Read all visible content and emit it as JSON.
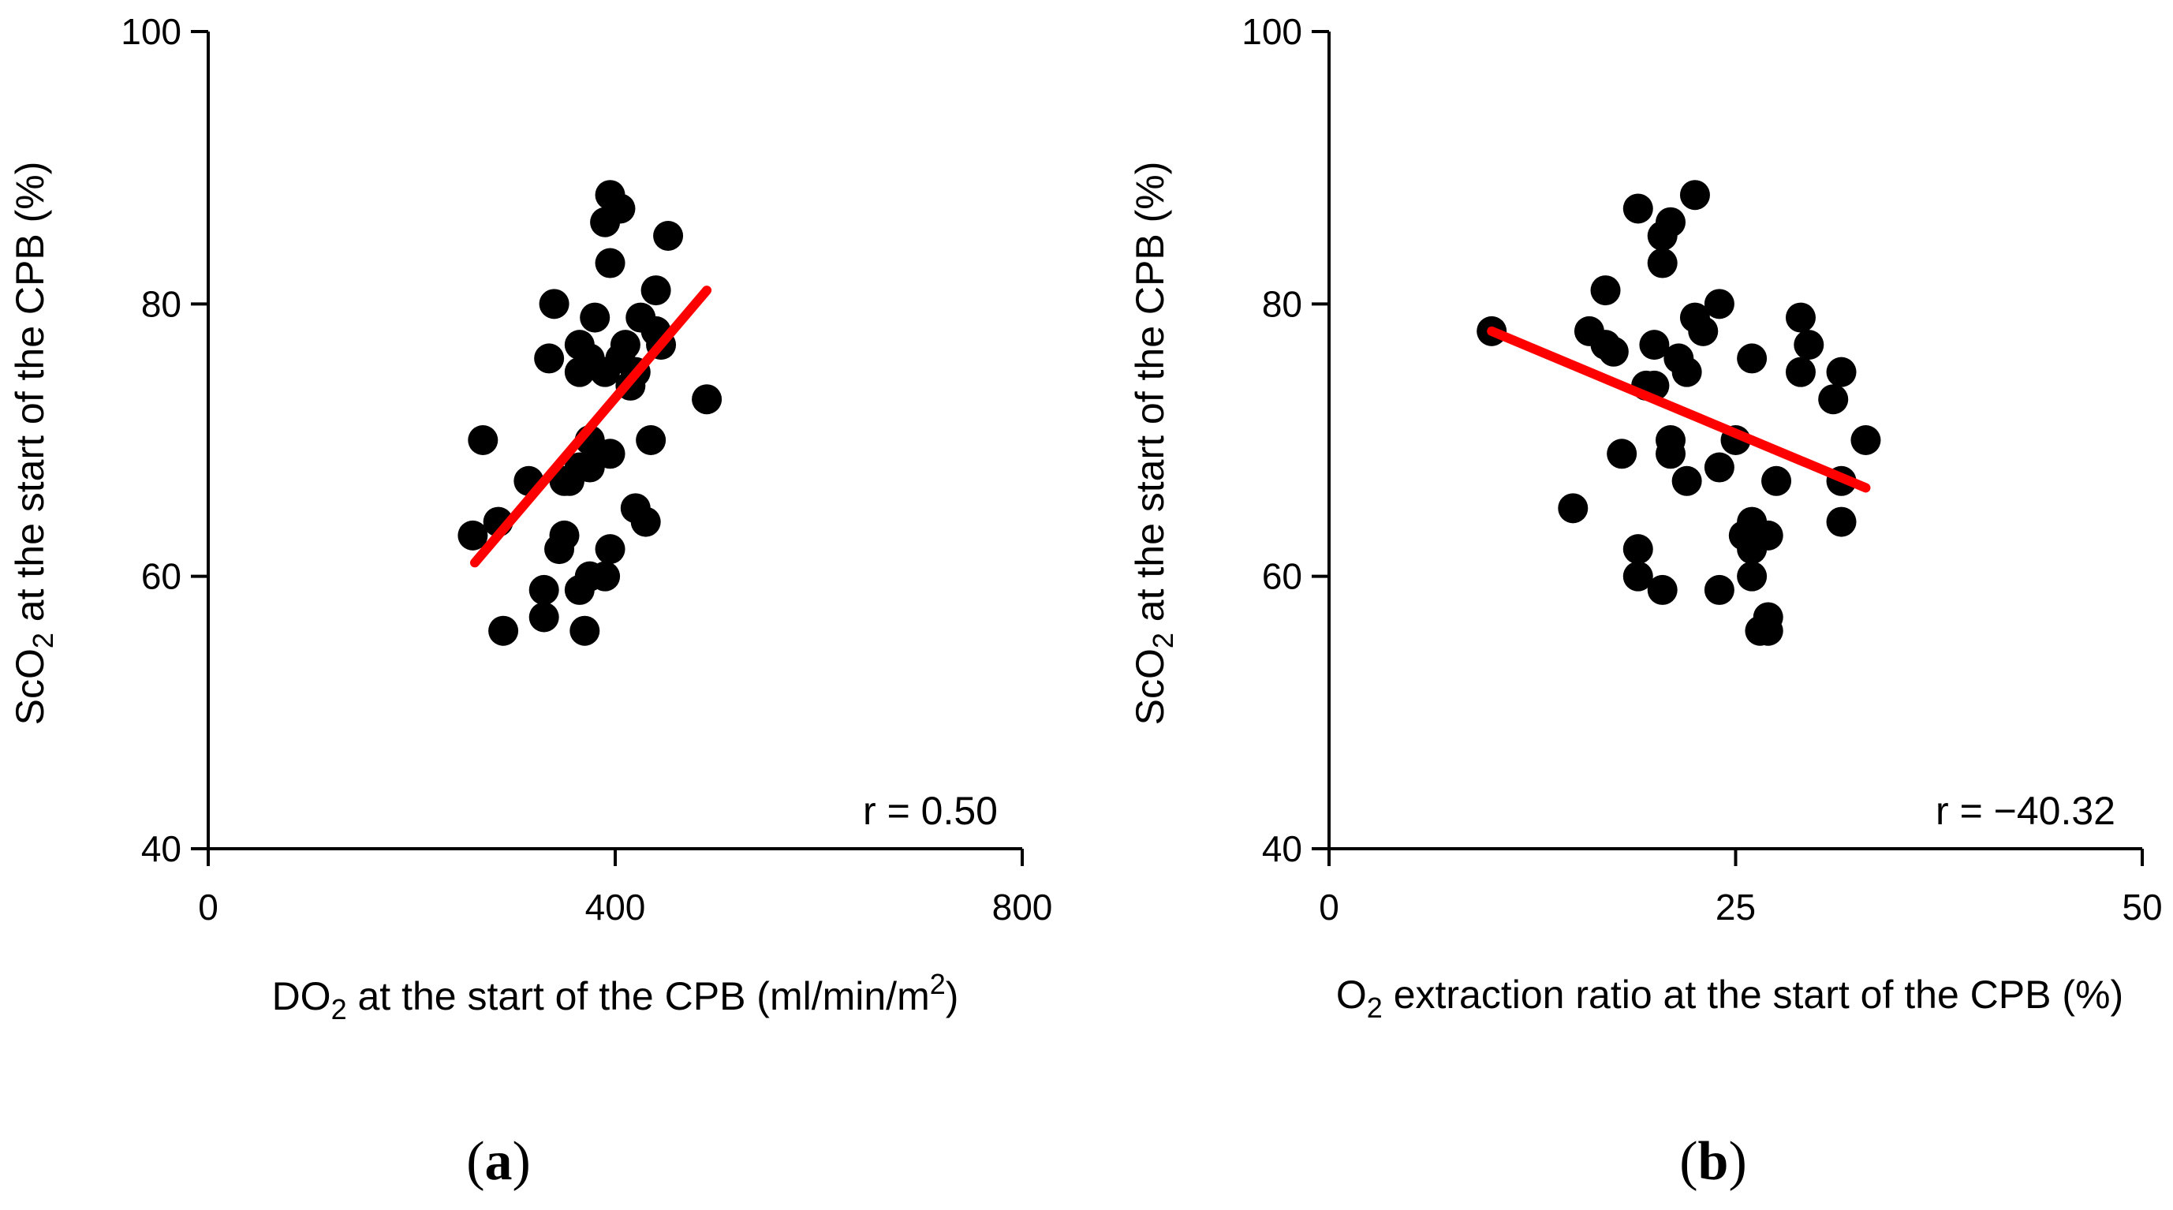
{
  "chart_data": [
    {
      "panel": "a",
      "type": "scatter",
      "xlabel": {
        "pre": "DO",
        "sub": "2",
        "mid": " at the start of the CPB (ml/min/m",
        "sup": "2",
        "post": ")"
      },
      "ylabel": {
        "pre": "ScO",
        "sub": "2",
        "post": " at the start of the CPB (%)"
      },
      "xlim": [
        0,
        800
      ],
      "ylim": [
        40,
        100
      ],
      "xticks": [
        0,
        400,
        800
      ],
      "yticks": [
        40,
        60,
        80,
        100
      ],
      "annotation": "r = 0.50",
      "fit_line": {
        "x": [
          262,
          490
        ],
        "y": [
          61,
          81
        ]
      },
      "points": [
        [
          395,
          88
        ],
        [
          405,
          87
        ],
        [
          390,
          86
        ],
        [
          452,
          85
        ],
        [
          395,
          83
        ],
        [
          440,
          81
        ],
        [
          340,
          80
        ],
        [
          380,
          79
        ],
        [
          425,
          79
        ],
        [
          440,
          78
        ],
        [
          365,
          77
        ],
        [
          410,
          77
        ],
        [
          445,
          77
        ],
        [
          335,
          76
        ],
        [
          375,
          76
        ],
        [
          405,
          76
        ],
        [
          365,
          75
        ],
        [
          390,
          75
        ],
        [
          420,
          75
        ],
        [
          415,
          74
        ],
        [
          490,
          73
        ],
        [
          270,
          70
        ],
        [
          375,
          70
        ],
        [
          435,
          70
        ],
        [
          395,
          69
        ],
        [
          365,
          68
        ],
        [
          375,
          68
        ],
        [
          315,
          67
        ],
        [
          350,
          67
        ],
        [
          355,
          67
        ],
        [
          420,
          65
        ],
        [
          260,
          63
        ],
        [
          350,
          63
        ],
        [
          430,
          64
        ],
        [
          285,
          64
        ],
        [
          345,
          62
        ],
        [
          395,
          62
        ],
        [
          375,
          60
        ],
        [
          390,
          60
        ],
        [
          330,
          59
        ],
        [
          365,
          59
        ],
        [
          330,
          57
        ],
        [
          290,
          56
        ],
        [
          370,
          56
        ]
      ]
    },
    {
      "panel": "b",
      "type": "scatter",
      "xlabel": {
        "pre": "O",
        "sub": "2",
        "post": " extraction ratio at the start of the CPB (%)"
      },
      "ylabel": {
        "pre": "ScO",
        "sub": "2",
        "post": " at the start of the CPB (%)"
      },
      "xlim": [
        0,
        50
      ],
      "ylim": [
        40,
        100
      ],
      "xticks": [
        0,
        25,
        50
      ],
      "yticks": [
        40,
        60,
        80,
        100
      ],
      "annotation": "r = −40.32",
      "fit_line": {
        "x": [
          10,
          33
        ],
        "y": [
          78,
          66.5
        ]
      },
      "points": [
        [
          22.5,
          88
        ],
        [
          19,
          87
        ],
        [
          21,
          86
        ],
        [
          20.5,
          85
        ],
        [
          20.5,
          83
        ],
        [
          17,
          81
        ],
        [
          24,
          80
        ],
        [
          29,
          79
        ],
        [
          22.5,
          79
        ],
        [
          16,
          78
        ],
        [
          23,
          78
        ],
        [
          10,
          78
        ],
        [
          17,
          77
        ],
        [
          20,
          77
        ],
        [
          29.5,
          77
        ],
        [
          17.5,
          76.5
        ],
        [
          26,
          76
        ],
        [
          21.5,
          76
        ],
        [
          22,
          75
        ],
        [
          29,
          75
        ],
        [
          31.5,
          75
        ],
        [
          20,
          74
        ],
        [
          19.5,
          74
        ],
        [
          31,
          73
        ],
        [
          33,
          70
        ],
        [
          21,
          70
        ],
        [
          25,
          70
        ],
        [
          21,
          69
        ],
        [
          18,
          69
        ],
        [
          24,
          68
        ],
        [
          22,
          67
        ],
        [
          27.5,
          67
        ],
        [
          31.5,
          67
        ],
        [
          15,
          65
        ],
        [
          26,
          64
        ],
        [
          31.5,
          64
        ],
        [
          25.5,
          63
        ],
        [
          27,
          63
        ],
        [
          26,
          62
        ],
        [
          19,
          62
        ],
        [
          26,
          60
        ],
        [
          19,
          60
        ],
        [
          20.5,
          59
        ],
        [
          24,
          59
        ],
        [
          27,
          57
        ],
        [
          26.5,
          56
        ],
        [
          27,
          56
        ]
      ]
    }
  ],
  "panel_labels": [
    {
      "open": "(",
      "letter": "a",
      "close": ")"
    },
    {
      "open": "(",
      "letter": "b",
      "close": ")"
    }
  ]
}
